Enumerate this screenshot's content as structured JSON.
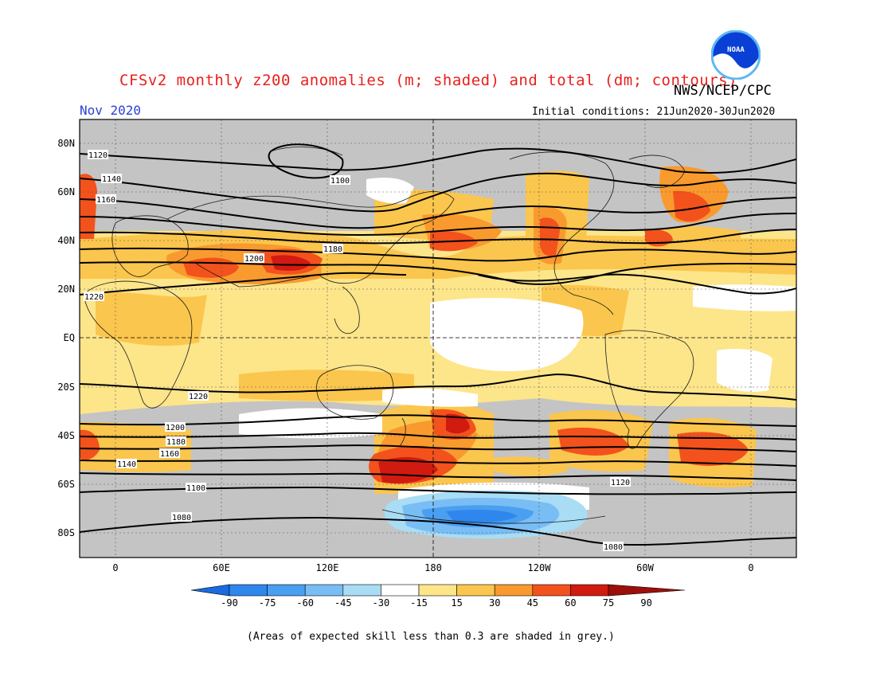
{
  "header": {
    "title": "CFSv2 monthly z200 anomalies (m; shaded) and total (dm; contours)",
    "agency": "NWS/NCEP/CPC",
    "period": "Nov 2020",
    "initial_conditions": "Initial conditions: 21Jun2020-30Jun2020",
    "logo_text": "NOAA"
  },
  "map": {
    "lat_labels": [
      "80N",
      "60N",
      "40N",
      "20N",
      "EQ",
      "20S",
      "40S",
      "60S",
      "80S"
    ],
    "lon_labels": [
      "0",
      "60E",
      "120E",
      "180",
      "120W",
      "60W",
      "0"
    ],
    "contour_labels": [
      "1120",
      "1140",
      "1160",
      "1180",
      "1200",
      "1220",
      "1100",
      "1080",
      "1220",
      "1200",
      "1180",
      "1160",
      "1140",
      "1120",
      "1100",
      "1080"
    ]
  },
  "colorbar": {
    "labels": [
      "-90",
      "-75",
      "-60",
      "-45",
      "-30",
      "-15",
      "15",
      "30",
      "45",
      "60",
      "75",
      "90"
    ],
    "colors": [
      "#1a6be0",
      "#2f86ec",
      "#4a9ff0",
      "#79bdf5",
      "#a9dcf5",
      "#ffffff",
      "#fde58a",
      "#fbc64d",
      "#f99a2e",
      "#f3521c",
      "#d11a10",
      "#9c0f0a"
    ]
  },
  "footnote": "(Areas of expected skill less than 0.3 are shaded in grey.)"
}
